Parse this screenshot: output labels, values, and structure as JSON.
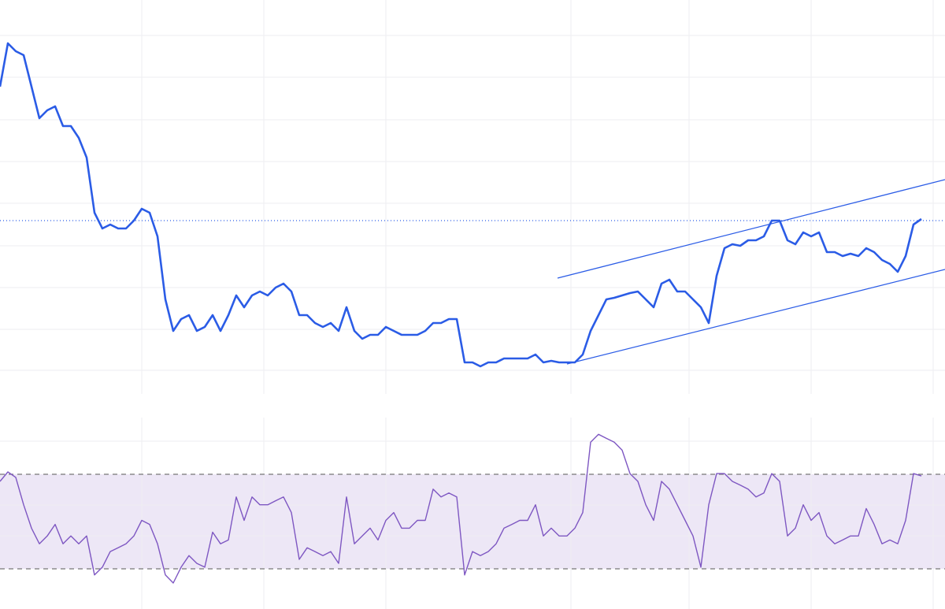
{
  "chart_data": [
    {
      "type": "line",
      "color": "#2b5ce6",
      "x": [
        0,
        10,
        20,
        30,
        40,
        50,
        60,
        70,
        80,
        90,
        100,
        110,
        120,
        130,
        140,
        150,
        160,
        170,
        180,
        190,
        200,
        210,
        220,
        230,
        240,
        250,
        260,
        270,
        280,
        290,
        300,
        310,
        320,
        330,
        340,
        350,
        360,
        370,
        380,
        390,
        400,
        410,
        420,
        430,
        440,
        450,
        460,
        470,
        480,
        490,
        500,
        510,
        520,
        530,
        540,
        550,
        560,
        570,
        580,
        590,
        600,
        610,
        620,
        630,
        640,
        650,
        660,
        670,
        680,
        690,
        700,
        710,
        720,
        730,
        740,
        750,
        760,
        770,
        780,
        790,
        800,
        810,
        820,
        830,
        840,
        850,
        860,
        870,
        880,
        890,
        900,
        910,
        920,
        930,
        940,
        950,
        960,
        970,
        980,
        990,
        1000,
        1010,
        1020,
        1030,
        1040,
        1050,
        1060,
        1070,
        1080,
        1090,
        1100,
        1110,
        1120,
        1130,
        1140,
        1150,
        1160,
        1170
      ],
      "values": [
        78,
        89,
        87,
        86,
        78,
        70,
        72,
        73,
        68,
        68,
        65,
        60,
        46,
        42,
        43,
        42,
        42,
        44,
        47,
        46,
        40,
        24,
        16,
        19,
        20,
        16,
        17,
        20,
        16,
        20,
        25,
        22,
        25,
        26,
        25,
        27,
        28,
        26,
        20,
        20,
        18,
        17,
        18,
        16,
        22,
        16,
        14,
        15,
        15,
        17,
        16,
        15,
        15,
        15,
        16,
        18,
        18,
        19,
        19,
        8,
        8,
        7,
        8,
        8,
        9,
        9,
        9,
        9,
        10,
        8,
        8.4,
        8,
        8,
        8,
        10,
        16,
        20,
        24,
        24.4,
        25,
        25.6,
        26,
        24,
        22,
        28,
        29,
        26,
        26,
        24,
        22,
        18,
        30,
        37,
        38,
        37.6,
        39,
        39,
        40,
        44,
        44,
        39,
        38,
        41,
        40,
        41,
        36,
        36,
        35,
        35.6,
        35,
        37,
        36,
        34,
        33,
        31,
        35,
        43,
        44.4
      ],
      "xlim": [
        0,
        1200
      ],
      "ylim": [
        0,
        100
      ],
      "xticks": [
        180,
        335,
        490,
        725,
        875,
        1030,
        1185
      ],
      "yticks": [
        91,
        80.4,
        69.6,
        59,
        48.4,
        37.6,
        27,
        16.4,
        6
      ],
      "grid": true,
      "reference_line": 44,
      "channel": {
        "color": "#2b5ce6",
        "upper": {
          "x": [
            708,
            1200
          ],
          "values": [
            29.4,
            54.4
          ]
        },
        "lower": {
          "x": [
            720,
            1200
          ],
          "values": [
            7.6,
            31.6
          ]
        }
      }
    },
    {
      "type": "line",
      "color": "#7e57c2",
      "x": [
        0,
        10,
        20,
        30,
        40,
        50,
        60,
        70,
        80,
        90,
        100,
        110,
        120,
        130,
        140,
        150,
        160,
        170,
        180,
        190,
        200,
        210,
        220,
        230,
        240,
        250,
        260,
        270,
        280,
        290,
        300,
        310,
        320,
        330,
        340,
        350,
        360,
        370,
        380,
        390,
        400,
        410,
        420,
        430,
        440,
        450,
        460,
        470,
        480,
        490,
        500,
        510,
        520,
        530,
        540,
        550,
        560,
        570,
        580,
        590,
        600,
        610,
        620,
        630,
        640,
        650,
        660,
        670,
        680,
        690,
        700,
        710,
        720,
        730,
        740,
        750,
        760,
        770,
        780,
        790,
        800,
        810,
        820,
        830,
        840,
        850,
        860,
        870,
        880,
        890,
        900,
        910,
        920,
        930,
        940,
        950,
        960,
        970,
        980,
        990,
        1000,
        1010,
        1020,
        1030,
        1040,
        1050,
        1060,
        1070,
        1080,
        1090,
        1100,
        1110,
        1120,
        1130,
        1140,
        1150,
        1160,
        1170
      ],
      "values": [
        67,
        71,
        68.7,
        57.1,
        47.2,
        40.6,
        43.9,
        48.8,
        40.6,
        43.9,
        40.6,
        43.9,
        27.4,
        30.7,
        37.3,
        38.9,
        40.6,
        43.9,
        50.5,
        48.8,
        40.6,
        27.4,
        24,
        30.7,
        35.6,
        32.3,
        30.7,
        45.5,
        40.6,
        42.2,
        60.4,
        50.5,
        60.4,
        57.1,
        57.1,
        58.8,
        60.4,
        53.8,
        34,
        38.9,
        37.3,
        35.6,
        37.3,
        32.3,
        60.4,
        40.6,
        43.9,
        47.2,
        42.2,
        50.5,
        53.8,
        47.2,
        47.2,
        50.5,
        50.5,
        63.7,
        60.4,
        62.1,
        60.4,
        27.4,
        37.3,
        35.6,
        37.3,
        40.6,
        47.2,
        48.8,
        50.5,
        50.5,
        57.1,
        43.9,
        47.2,
        43.9,
        43.9,
        47.2,
        53.8,
        83.6,
        86.9,
        85.2,
        83.6,
        80.2,
        70.3,
        67,
        57.1,
        50.5,
        67,
        63.7,
        57.1,
        50.5,
        43.9,
        30.7,
        57.1,
        70.3,
        70.3,
        67,
        65.4,
        63.7,
        60.4,
        62.1,
        70.3,
        67,
        43.9,
        47.2,
        57.1,
        50.5,
        53.8,
        43.9,
        40.6,
        42.2,
        43.9,
        43.9,
        55.5,
        48.8,
        40.6,
        42.2,
        40.6,
        50.5,
        70.3,
        69.3
      ],
      "xlim": [
        0,
        1200
      ],
      "ylim": [
        13,
        94
      ],
      "xticks": [
        180,
        335,
        490,
        725,
        875,
        1030,
        1185
      ],
      "yticks": [
        84,
        57,
        44
      ],
      "grid": true,
      "bands": [
        30,
        70
      ],
      "band_color": "#ede7f6"
    }
  ]
}
